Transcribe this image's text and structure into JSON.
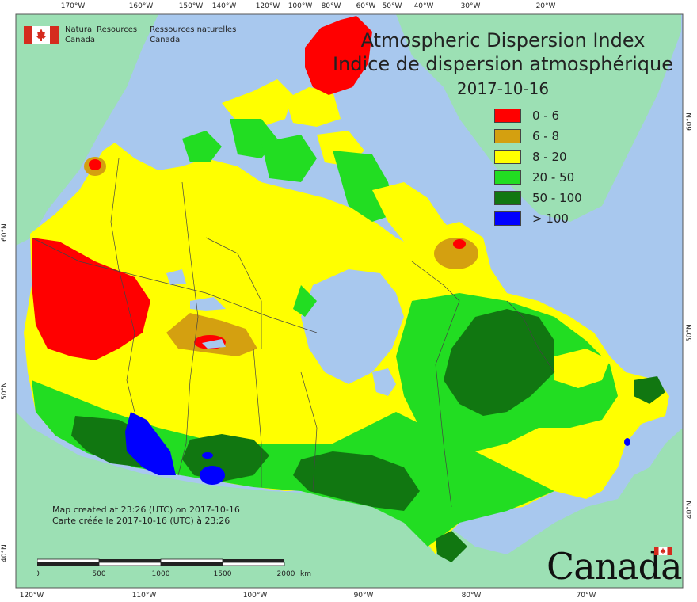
{
  "title": {
    "english": "Atmospheric Dispersion Index",
    "french": "Indice de dispersion atmosphérique",
    "date": "2017-10-16"
  },
  "legend": [
    {
      "label": "0 - 6",
      "color": "#ff0000"
    },
    {
      "label": "6 - 8",
      "color": "#d4a010"
    },
    {
      "label": "8 - 20",
      "color": "#ffff00"
    },
    {
      "label": "20 - 50",
      "color": "#22dd22"
    },
    {
      "label": "50 - 100",
      "color": "#117711"
    },
    {
      "label": "> 100",
      "color": "#0000ff"
    }
  ],
  "agency": {
    "english_line1": "Natural Resources",
    "english_line2": "Canada",
    "french_line1": "Ressources naturelles",
    "french_line2": "Canada"
  },
  "creation_note": {
    "english": "Map created at 23:26 (UTC) on 2017-10-16",
    "french": "Carte créée le 2017-10-16 (UTC) à 23:26"
  },
  "scale_bar": {
    "ticks": [
      "0",
      "500",
      "1000",
      "1500",
      "2000"
    ],
    "unit": "km"
  },
  "wordmark": "Canada",
  "graticule": {
    "top": [
      "170°W",
      "160°W",
      "150°W",
      "140°W",
      "120°W",
      "100°W",
      "80°W",
      "60°W",
      "50°W",
      "40°W",
      "30°W",
      "20°W"
    ],
    "bottom": [
      "120°W",
      "110°W",
      "100°W",
      "90°W",
      "80°W",
      "70°W"
    ],
    "left": [
      "60°N",
      "50°N",
      "40°N"
    ],
    "right": [
      "60°N",
      "50°N",
      "40°N"
    ]
  },
  "map_colors": {
    "ocean": "#a8c8ee",
    "foreign_land": "#9ce0b4",
    "graticule_frame": "#555555"
  }
}
